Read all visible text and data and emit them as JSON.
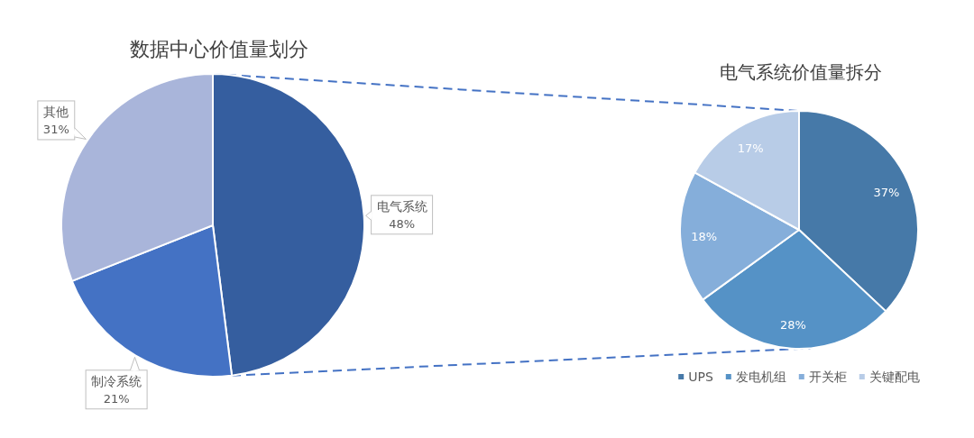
{
  "chart_data": [
    {
      "type": "pie",
      "title": "数据中心价值量划分",
      "categories": [
        "电气系统",
        "制冷系统",
        "其他"
      ],
      "values": [
        48,
        21,
        31
      ],
      "value_labels": [
        "48%",
        "21%",
        "31%"
      ],
      "colors": [
        "#355e9f",
        "#4472c4",
        "#a9b5da"
      ],
      "legend": false
    },
    {
      "type": "pie",
      "title": "电气系统价值量拆分",
      "categories": [
        "UPS",
        "发电机组",
        "开关柜",
        "关键配电"
      ],
      "values": [
        37,
        28,
        18,
        17
      ],
      "value_labels": [
        "37%",
        "28%",
        "18%",
        "17%"
      ],
      "colors": [
        "#4679a8",
        "#5592c6",
        "#85aeda",
        "#b8cce7"
      ],
      "legend": "bottom"
    }
  ]
}
